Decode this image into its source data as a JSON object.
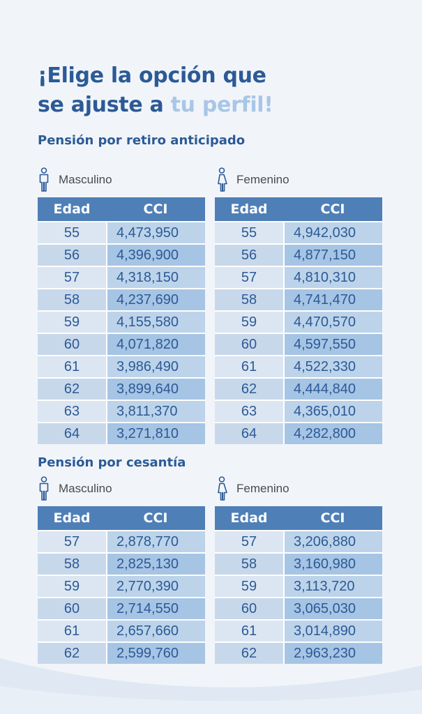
{
  "headline": {
    "line1": "¡Elige la opción que",
    "line2_start": "se ajuste a ",
    "line2_accent": "tu perfil!"
  },
  "colors": {
    "primary": "#2c5a96",
    "accent": "#a9c6e6",
    "header_bg": "#4f7fb7",
    "row_light": "#dce6f2",
    "row_mid": "#bcd3ea",
    "background": "#f1f5fa"
  },
  "sections": [
    {
      "title": "Pensión por retiro anticipado",
      "groups": [
        {
          "label": "Masculino",
          "icon": "male-person-icon",
          "headers": [
            "Edad",
            "CCI"
          ],
          "rows": [
            [
              "55",
              "4,473,950"
            ],
            [
              "56",
              "4,396,900"
            ],
            [
              "57",
              "4,318,150"
            ],
            [
              "58",
              "4,237,690"
            ],
            [
              "59",
              "4,155,580"
            ],
            [
              "60",
              "4,071,820"
            ],
            [
              "61",
              "3,986,490"
            ],
            [
              "62",
              "3,899,640"
            ],
            [
              "63",
              "3,811,370"
            ],
            [
              "64",
              "3,271,810"
            ]
          ]
        },
        {
          "label": "Femenino",
          "icon": "female-person-icon",
          "headers": [
            "Edad",
            "CCI"
          ],
          "rows": [
            [
              "55",
              "4,942,030"
            ],
            [
              "56",
              "4,877,150"
            ],
            [
              "57",
              "4,810,310"
            ],
            [
              "58",
              "4,741,470"
            ],
            [
              "59",
              "4,470,570"
            ],
            [
              "60",
              "4,597,550"
            ],
            [
              "61",
              "4,522,330"
            ],
            [
              "62",
              "4,444,840"
            ],
            [
              "63",
              "4,365,010"
            ],
            [
              "64",
              "4,282,800"
            ]
          ]
        }
      ]
    },
    {
      "title": "Pensión por cesantía",
      "groups": [
        {
          "label": "Masculino",
          "icon": "male-person-icon",
          "headers": [
            "Edad",
            "CCI"
          ],
          "rows": [
            [
              "57",
              "2,878,770"
            ],
            [
              "58",
              "2,825,130"
            ],
            [
              "59",
              "2,770,390"
            ],
            [
              "60",
              "2,714,550"
            ],
            [
              "61",
              "2,657,660"
            ],
            [
              "62",
              "2,599,760"
            ]
          ]
        },
        {
          "label": "Femenino",
          "icon": "female-person-icon",
          "headers": [
            "Edad",
            "CCI"
          ],
          "rows": [
            [
              "57",
              "3,206,880"
            ],
            [
              "58",
              "3,160,980"
            ],
            [
              "59",
              "3,113,720"
            ],
            [
              "60",
              "3,065,030"
            ],
            [
              "61",
              "3,014,890"
            ],
            [
              "62",
              "2,963,230"
            ]
          ]
        }
      ]
    }
  ]
}
